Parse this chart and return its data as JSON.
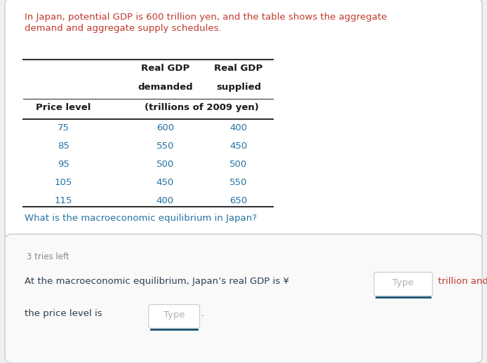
{
  "intro_text_line1": "In Japan, potential GDP is 600 trillion yen, and the table shows the aggregate",
  "intro_text_line2": "demand and aggregate supply schedules.",
  "intro_text_color": "#c0392b",
  "col_header1": "Real GDP",
  "col_header1b": "demanded",
  "col_header2": "Real GDP",
  "col_header2b": "supplied",
  "col_header3": "(trillions of 2009 yen)",
  "col0_label": "Price level",
  "price_levels": [
    75,
    85,
    95,
    105,
    115
  ],
  "gdp_demanded": [
    600,
    550,
    500,
    450,
    400
  ],
  "gdp_supplied": [
    400,
    450,
    500,
    550,
    650
  ],
  "question_text": "What is the macroeconomic equilibrium in Japan?",
  "question_color": "#2471a3",
  "tries_text": "3 tries left",
  "tries_color": "#7f8c8d",
  "table_line_color": "#333333",
  "bg_color": "#f0f0f0",
  "panel1_bg": "#ffffff",
  "panel2_bg": "#f9f9f9",
  "panel_border_color": "#cccccc",
  "data_color": "#2471a3",
  "header_color": "#1a1a1a",
  "type_box_border": "#cccccc",
  "type_text_color": "#b0b0b0",
  "underline_color": "#1a5276",
  "answer_text_color": "#2c3e50",
  "trillion_and_color": "#c0392b"
}
